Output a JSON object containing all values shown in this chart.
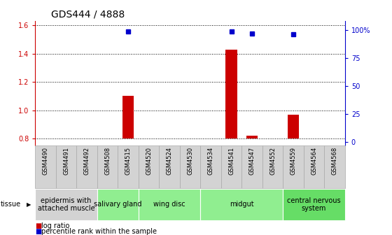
{
  "title": "GDS444 / 4888",
  "samples": [
    "GSM4490",
    "GSM4491",
    "GSM4492",
    "GSM4508",
    "GSM4515",
    "GSM4520",
    "GSM4524",
    "GSM4530",
    "GSM4534",
    "GSM4541",
    "GSM4547",
    "GSM4552",
    "GSM4559",
    "GSM4564",
    "GSM4568"
  ],
  "log_ratio": [
    0.8,
    0.8,
    0.8,
    0.8,
    1.1,
    0.8,
    0.8,
    0.8,
    0.8,
    1.43,
    0.82,
    0.8,
    0.97,
    0.8,
    0.8
  ],
  "percentile": [
    null,
    null,
    null,
    null,
    99,
    null,
    null,
    null,
    null,
    99,
    97,
    null,
    96,
    null,
    null
  ],
  "ylim_left": [
    0.75,
    1.63
  ],
  "ylim_right": [
    -3.5,
    108
  ],
  "yticks_left": [
    0.8,
    1.0,
    1.2,
    1.4,
    1.6
  ],
  "yticks_right": [
    0,
    25,
    50,
    75,
    100
  ],
  "ytick_labels_right": [
    "0",
    "25",
    "50",
    "75",
    "100%"
  ],
  "bar_color": "#cc0000",
  "dot_color": "#0000cc",
  "baseline": 0.8,
  "left_color": "#cc0000",
  "right_color": "#0000cc",
  "title_fontsize": 10,
  "tick_fontsize": 7,
  "sample_fontsize": 6,
  "tissue_fontsize": 7,
  "group_defs": [
    [
      0,
      3,
      "epidermis with\nattached muscle",
      "#d3d3d3"
    ],
    [
      3,
      5,
      "salivary gland",
      "#90ee90"
    ],
    [
      5,
      8,
      "wing disc",
      "#90ee90"
    ],
    [
      8,
      12,
      "midgut",
      "#90ee90"
    ],
    [
      12,
      15,
      "central nervous\nsystem",
      "#66dd66"
    ]
  ]
}
